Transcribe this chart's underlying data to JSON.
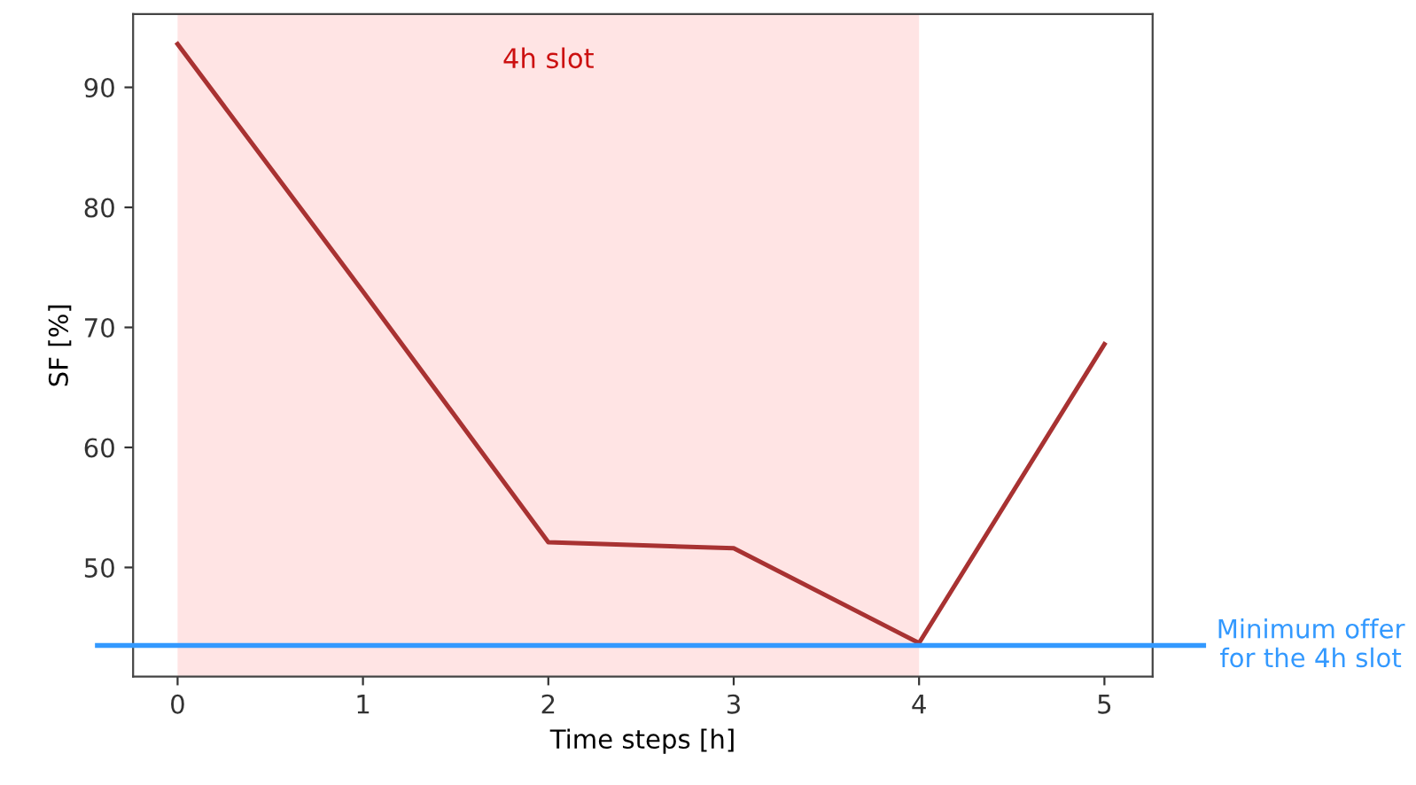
{
  "chart_data": {
    "type": "line",
    "xlabel": "Time steps [h]",
    "ylabel": "SF [%]",
    "x": [
      0,
      1,
      2,
      3,
      4,
      5
    ],
    "series": [
      {
        "color": "#a83232",
        "values": [
          93.6,
          73.0,
          52.1,
          51.6,
          43.7,
          68.6
        ]
      }
    ],
    "xlim": [
      -0.24,
      5.26
    ],
    "xticks": [
      0,
      1,
      2,
      3,
      4,
      5
    ],
    "ylim": [
      40.9,
      96.1
    ],
    "yticks": [
      50,
      60,
      70,
      80,
      90
    ],
    "bands": [
      {
        "axis": "x",
        "from": 0,
        "to": 4,
        "label": "4h slot",
        "color": "#ffe4e4"
      }
    ],
    "ref_lines": [
      {
        "axis": "y",
        "value": 43.5,
        "label": "Minimum offer\nfor the 4h slot",
        "color": "#3399ff",
        "line_style": "solid"
      }
    ],
    "grid": false,
    "marker": "none",
    "line_style": "solid"
  }
}
